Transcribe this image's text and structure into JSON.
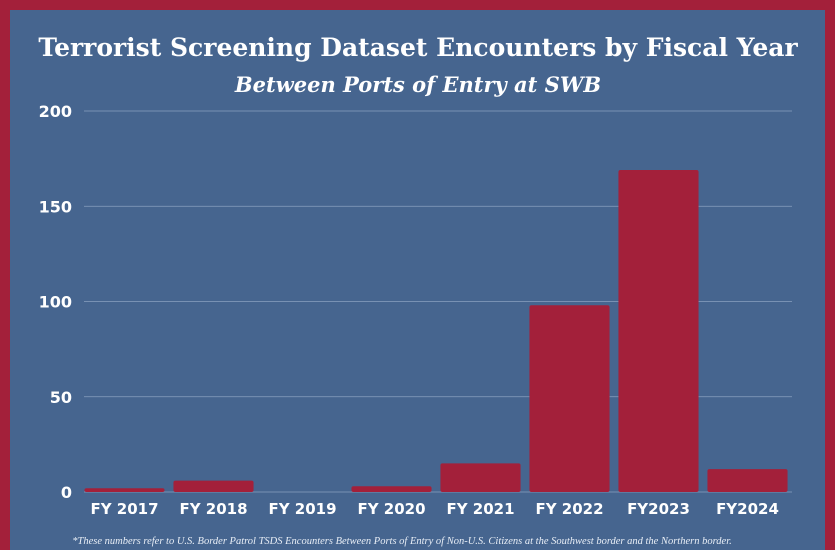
{
  "chart_data": {
    "type": "bar",
    "title": "Terrorist Screening Dataset Encounters by Fiscal Year",
    "subtitle": "Between Ports of Entry at SWB",
    "categories": [
      "FY 2017",
      "FY 2018",
      "FY 2019",
      "FY 2020",
      "FY 2021",
      "FY 2022",
      "FY2023",
      "FY2024"
    ],
    "values": [
      2,
      6,
      0,
      3,
      15,
      98,
      169,
      12
    ],
    "color": "#a3203a",
    "ylim": [
      0,
      200
    ],
    "yticks": [
      0,
      50,
      100,
      150,
      200
    ],
    "grid": true,
    "footnote": "*These numbers refer to U.S. Border Patrol TSDS Encounters Between Ports of Entry of Non-U.S. Citizens at the Southwest border and the Northern border."
  }
}
